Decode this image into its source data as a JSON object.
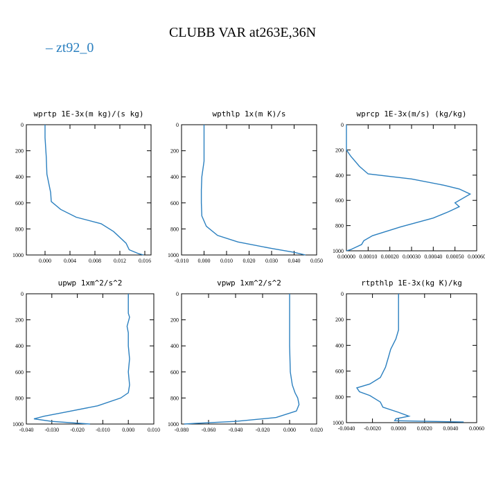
{
  "title": "CLUBB VAR at263E,36N",
  "legend": "zt92_0",
  "colors": {
    "series": "#2a7fbf",
    "axis": "#000000"
  },
  "chart_data": [
    {
      "type": "line",
      "title": "wprtp  1E-3x(m kg)/(s kg)",
      "series_name": "zt92_0",
      "xlim": [
        -0.003,
        0.017
      ],
      "ylim": [
        1000,
        0
      ],
      "xticks": [
        "0.000",
        "0.004",
        "0.008",
        "0.012",
        "0.016"
      ],
      "yticks": [
        "0",
        "200",
        "400",
        "600",
        "800",
        "1000"
      ],
      "points": [
        [
          0.0,
          0
        ],
        [
          0.0,
          100
        ],
        [
          0.0002,
          250
        ],
        [
          0.0003,
          380
        ],
        [
          0.0006,
          450
        ],
        [
          0.0009,
          520
        ],
        [
          0.001,
          590
        ],
        [
          0.0025,
          650
        ],
        [
          0.005,
          710
        ],
        [
          0.009,
          760
        ],
        [
          0.011,
          820
        ],
        [
          0.013,
          910
        ],
        [
          0.0135,
          960
        ],
        [
          0.015,
          990
        ],
        [
          0.0158,
          1000
        ]
      ]
    },
    {
      "type": "line",
      "title": "wpthlp  1x(m K)/s",
      "series_name": "zt92_0",
      "xlim": [
        -0.01,
        0.05
      ],
      "ylim": [
        1000,
        0
      ],
      "xticks": [
        "-0.010",
        "0.000",
        "0.010",
        "0.020",
        "0.030",
        "0.040",
        "0.050"
      ],
      "yticks": [
        "0",
        "200",
        "400",
        "600",
        "800",
        "1000"
      ],
      "points": [
        [
          0.0,
          0
        ],
        [
          0.0,
          150
        ],
        [
          0.0,
          280
        ],
        [
          -0.001,
          400
        ],
        [
          -0.0012,
          500
        ],
        [
          -0.0012,
          600
        ],
        [
          -0.001,
          700
        ],
        [
          0.001,
          780
        ],
        [
          0.006,
          850
        ],
        [
          0.015,
          900
        ],
        [
          0.03,
          950
        ],
        [
          0.04,
          980
        ],
        [
          0.045,
          1000
        ]
      ]
    },
    {
      "type": "line",
      "title": "wprcp  1E-3x(m/s) (kg/kg)",
      "series_name": "zt92_0",
      "xlim": [
        0.0,
        0.0006
      ],
      "ylim": [
        1000,
        0
      ],
      "xticks": [
        "0.00000",
        "0.00010",
        "0.00020",
        "0.00030",
        "0.00040",
        "0.00050",
        "0.00060"
      ],
      "yticks": [
        "0",
        "200",
        "400",
        "600",
        "800",
        "1000"
      ],
      "points": [
        [
          0.0,
          0
        ],
        [
          0.0,
          200
        ],
        [
          2e-05,
          250
        ],
        [
          6e-05,
          330
        ],
        [
          0.0001,
          390
        ],
        [
          0.0003,
          430
        ],
        [
          0.00045,
          480
        ],
        [
          0.00052,
          510
        ],
        [
          0.00057,
          550
        ],
        [
          0.0005,
          620
        ],
        [
          0.00052,
          650
        ],
        [
          0.00047,
          690
        ],
        [
          0.0004,
          740
        ],
        [
          0.00025,
          810
        ],
        [
          0.00012,
          880
        ],
        [
          8e-05,
          920
        ],
        [
          7e-05,
          950
        ],
        [
          2e-05,
          990
        ],
        [
          0.0,
          1000
        ]
      ]
    },
    {
      "type": "line",
      "title": "upwp  1xm^2/s^2",
      "series_name": "zt92_0",
      "xlim": [
        -0.04,
        0.01
      ],
      "ylim": [
        1000,
        0
      ],
      "xticks": [
        "-0.040",
        "-0.030",
        "-0.020",
        "-0.010",
        "0.000",
        "0.010"
      ],
      "yticks": [
        "0",
        "200",
        "400",
        "600",
        "800",
        "1000"
      ],
      "points": [
        [
          0.0,
          0
        ],
        [
          0.0,
          100
        ],
        [
          0.0,
          150
        ],
        [
          0.0005,
          180
        ],
        [
          -0.0005,
          250
        ],
        [
          0.0,
          300
        ],
        [
          0.0,
          400
        ],
        [
          0.0005,
          500
        ],
        [
          0.0,
          600
        ],
        [
          0.0005,
          700
        ],
        [
          0.0,
          760
        ],
        [
          -0.003,
          800
        ],
        [
          -0.012,
          860
        ],
        [
          -0.025,
          910
        ],
        [
          -0.033,
          940
        ],
        [
          -0.037,
          960
        ],
        [
          -0.03,
          980
        ],
        [
          -0.015,
          1000
        ]
      ]
    },
    {
      "type": "line",
      "title": "vpwp  1xm^2/s^2",
      "series_name": "zt92_0",
      "xlim": [
        -0.08,
        0.02
      ],
      "ylim": [
        1000,
        0
      ],
      "xticks": [
        "-0.080",
        "-0.060",
        "-0.040",
        "-0.020",
        "0.000",
        "0.020"
      ],
      "yticks": [
        "0",
        "200",
        "400",
        "600",
        "800",
        "1000"
      ],
      "points": [
        [
          0.0,
          0
        ],
        [
          0.0,
          200
        ],
        [
          0.0,
          400
        ],
        [
          0.0005,
          600
        ],
        [
          0.002,
          700
        ],
        [
          0.004,
          760
        ],
        [
          0.006,
          800
        ],
        [
          0.007,
          850
        ],
        [
          0.005,
          900
        ],
        [
          -0.01,
          950
        ],
        [
          -0.04,
          980
        ],
        [
          -0.07,
          995
        ],
        [
          -0.078,
          1000
        ]
      ]
    },
    {
      "type": "line",
      "title": "rtpthlp  1E-3x(kg K)/kg",
      "series_name": "zt92_0",
      "xlim": [
        -0.004,
        0.006
      ],
      "ylim": [
        1000,
        0
      ],
      "xticks": [
        "-0.0040",
        "-0.0020",
        "0.0000",
        "0.0020",
        "0.0040",
        "0.0060"
      ],
      "yticks": [
        "0",
        "200",
        "400",
        "600",
        "800",
        "1000"
      ],
      "points": [
        [
          0.0,
          0
        ],
        [
          0.0,
          150
        ],
        [
          0.0,
          280
        ],
        [
          -0.0002,
          350
        ],
        [
          -0.0006,
          430
        ],
        [
          -0.0008,
          500
        ],
        [
          -0.001,
          570
        ],
        [
          -0.0014,
          650
        ],
        [
          -0.0022,
          700
        ],
        [
          -0.0032,
          730
        ],
        [
          -0.003,
          760
        ],
        [
          -0.0022,
          790
        ],
        [
          -0.0014,
          840
        ],
        [
          -0.0012,
          880
        ],
        [
          0.0,
          920
        ],
        [
          0.0008,
          950
        ],
        [
          -0.0002,
          970
        ],
        [
          -0.0003,
          985
        ],
        [
          0.005,
          995
        ]
      ]
    }
  ]
}
